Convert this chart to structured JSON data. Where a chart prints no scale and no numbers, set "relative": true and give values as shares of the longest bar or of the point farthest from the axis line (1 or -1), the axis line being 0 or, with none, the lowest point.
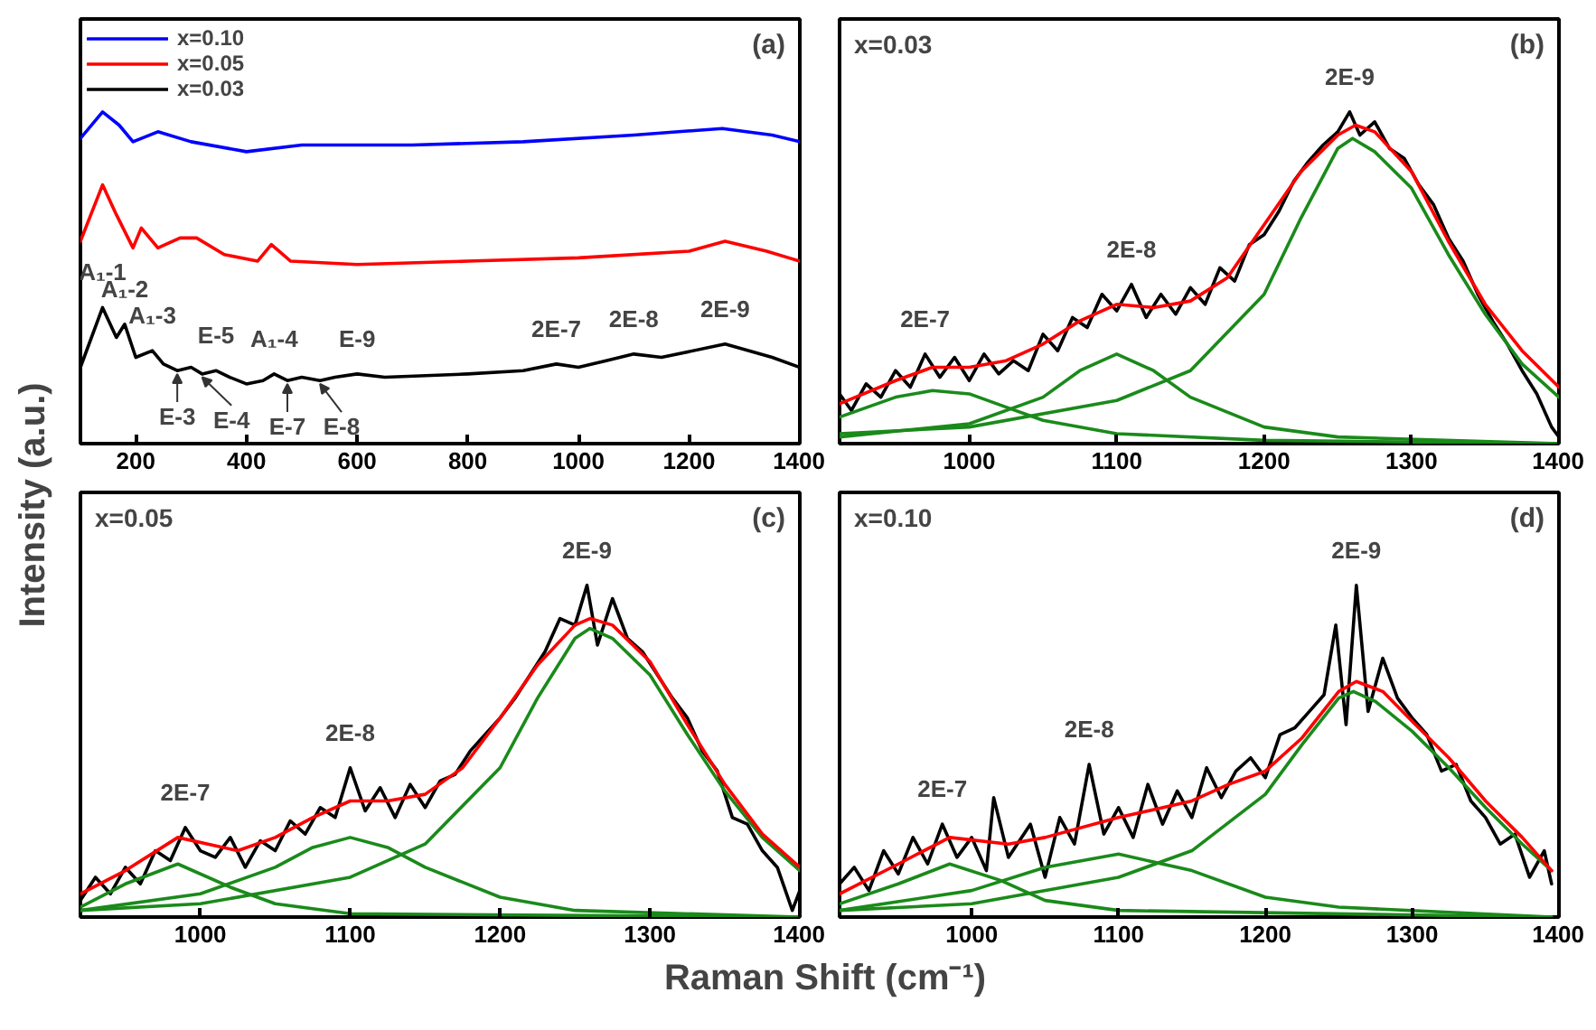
{
  "chart_data": [
    {
      "type": "line",
      "title": "(a)",
      "ylabel": "Intensity (a.u.)",
      "relative": true,
      "tick_labels": "x",
      "legend": "top left",
      "xlim": [
        100,
        1400
      ],
      "xticks": [
        200,
        400,
        600,
        800,
        1000,
        1200,
        1400
      ],
      "series": [
        {
          "name": "x=0.10",
          "color": "#0000ff",
          "x": [
            100,
            140,
            170,
            195,
            240,
            300,
            400,
            500,
            700,
            900,
            1100,
            1260,
            1350,
            1400
          ],
          "values": [
            0.92,
            1.0,
            0.96,
            0.91,
            0.94,
            0.91,
            0.88,
            0.9,
            0.9,
            0.91,
            0.93,
            0.95,
            0.93,
            0.91
          ]
        },
        {
          "name": "x=0.05",
          "color": "#ff0000",
          "x": [
            100,
            140,
            165,
            195,
            210,
            240,
            280,
            310,
            360,
            420,
            445,
            480,
            600,
            800,
            1000,
            1200,
            1265,
            1340,
            1400
          ],
          "values": [
            0.61,
            0.78,
            0.69,
            0.59,
            0.65,
            0.59,
            0.62,
            0.62,
            0.57,
            0.55,
            0.6,
            0.55,
            0.54,
            0.55,
            0.56,
            0.58,
            0.61,
            0.58,
            0.55
          ]
        },
        {
          "name": "x=0.03",
          "color": "#000000",
          "x": [
            100,
            140,
            165,
            180,
            200,
            230,
            250,
            275,
            300,
            320,
            345,
            370,
            400,
            430,
            450,
            474,
            500,
            533,
            560,
            600,
            650,
            800,
            900,
            960,
            1000,
            1050,
            1100,
            1150,
            1265,
            1350,
            1400
          ],
          "values": [
            0.23,
            0.41,
            0.32,
            0.36,
            0.26,
            0.28,
            0.24,
            0.22,
            0.23,
            0.21,
            0.22,
            0.2,
            0.18,
            0.19,
            0.21,
            0.19,
            0.2,
            0.19,
            0.2,
            0.21,
            0.2,
            0.21,
            0.22,
            0.24,
            0.23,
            0.25,
            0.27,
            0.26,
            0.3,
            0.26,
            0.23
          ]
        }
      ],
      "annotations": [
        {
          "text": "A₁-1",
          "x": 140,
          "y": 0.41
        },
        {
          "text": "A₁-2",
          "x": 180,
          "y": 0.36
        },
        {
          "text": "A₁-3",
          "x": 230,
          "y": 0.28
        },
        {
          "text": "E-5",
          "x": 345,
          "y": 0.22
        },
        {
          "text": "A₁-4",
          "x": 450,
          "y": 0.21
        },
        {
          "text": "E-9",
          "x": 600,
          "y": 0.21
        },
        {
          "text": "2E-7",
          "x": 960,
          "y": 0.24
        },
        {
          "text": "2E-8",
          "x": 1100,
          "y": 0.27
        },
        {
          "text": "2E-9",
          "x": 1265,
          "y": 0.3
        },
        {
          "text": "E-3",
          "x": 275,
          "y": 0.22
        },
        {
          "text": "E-4",
          "x": 320,
          "y": 0.21
        },
        {
          "text": "E-7",
          "x": 474,
          "y": 0.19
        },
        {
          "text": "E-8",
          "x": 533,
          "y": 0.19
        }
      ]
    },
    {
      "type": "line",
      "title": "(b)",
      "subtitle": "x=0.03",
      "relative": true,
      "tick_labels": "x",
      "xlim": [
        912,
        1400
      ],
      "xticks": [
        1000,
        1100,
        1200,
        1300,
        1400
      ],
      "series": [
        {
          "color": "#000000",
          "x": [
            912,
            920,
            930,
            940,
            950,
            960,
            970,
            980,
            990,
            1000,
            1010,
            1020,
            1030,
            1040,
            1050,
            1060,
            1070,
            1080,
            1090,
            1100,
            1110,
            1120,
            1130,
            1140,
            1150,
            1160,
            1170,
            1180,
            1190,
            1200,
            1210,
            1220,
            1230,
            1240,
            1250,
            1258,
            1265,
            1275,
            1285,
            1295,
            1305,
            1315,
            1325,
            1335,
            1345,
            1355,
            1365,
            1375,
            1385,
            1395,
            1400
          ],
          "values": [
            0.15,
            0.1,
            0.18,
            0.14,
            0.22,
            0.17,
            0.27,
            0.2,
            0.26,
            0.19,
            0.27,
            0.21,
            0.25,
            0.22,
            0.33,
            0.28,
            0.38,
            0.35,
            0.45,
            0.4,
            0.48,
            0.38,
            0.45,
            0.39,
            0.47,
            0.42,
            0.53,
            0.49,
            0.6,
            0.63,
            0.7,
            0.79,
            0.85,
            0.9,
            0.94,
            1.0,
            0.93,
            0.97,
            0.89,
            0.86,
            0.78,
            0.72,
            0.62,
            0.55,
            0.45,
            0.37,
            0.3,
            0.22,
            0.15,
            0.05,
            0.02
          ]
        },
        {
          "color": "#1a8a1a",
          "x": [
            912,
            950,
            975,
            1000,
            1025,
            1050,
            1100,
            1200,
            1400
          ],
          "values": [
            0.08,
            0.14,
            0.16,
            0.15,
            0.11,
            0.07,
            0.03,
            0.01,
            0
          ]
        },
        {
          "color": "#1a8a1a",
          "x": [
            912,
            1000,
            1050,
            1075,
            1100,
            1125,
            1150,
            1200,
            1250,
            1400
          ],
          "values": [
            0.02,
            0.06,
            0.14,
            0.22,
            0.27,
            0.22,
            0.14,
            0.05,
            0.02,
            0
          ]
        },
        {
          "color": "#1a8a1a",
          "x": [
            912,
            1000,
            1100,
            1150,
            1200,
            1225,
            1250,
            1260,
            1275,
            1300,
            1325,
            1350,
            1375,
            1400
          ],
          "values": [
            0.03,
            0.05,
            0.13,
            0.22,
            0.45,
            0.68,
            0.89,
            0.92,
            0.88,
            0.77,
            0.57,
            0.39,
            0.24,
            0.14
          ]
        },
        {
          "color": "#ff0000",
          "x": [
            912,
            950,
            975,
            1000,
            1025,
            1050,
            1075,
            1100,
            1125,
            1150,
            1175,
            1200,
            1225,
            1250,
            1262,
            1275,
            1300,
            1325,
            1350,
            1375,
            1400
          ],
          "values": [
            0.12,
            0.19,
            0.23,
            0.23,
            0.25,
            0.3,
            0.37,
            0.42,
            0.41,
            0.43,
            0.5,
            0.66,
            0.82,
            0.93,
            0.96,
            0.94,
            0.82,
            0.61,
            0.42,
            0.28,
            0.17
          ]
        }
      ],
      "annotations": [
        {
          "text": "2E-7",
          "x": 970,
          "y": 0.27
        },
        {
          "text": "2E-8",
          "x": 1110,
          "y": 0.48
        },
        {
          "text": "2E-9",
          "x": 1258,
          "y": 1.0
        }
      ]
    },
    {
      "type": "line",
      "title": "(c)",
      "subtitle": "x=0.05",
      "xlabel": "Raman Shift (cm⁻¹)",
      "relative": true,
      "tick_labels": "x",
      "xlim": [
        920,
        1400
      ],
      "xticks": [
        1000,
        1100,
        1200,
        1300,
        1400
      ],
      "series": [
        {
          "color": "#000000",
          "x": [
            920,
            930,
            940,
            950,
            960,
            970,
            980,
            990,
            1000,
            1010,
            1020,
            1030,
            1040,
            1050,
            1060,
            1070,
            1080,
            1090,
            1100,
            1110,
            1120,
            1130,
            1140,
            1150,
            1160,
            1170,
            1180,
            1190,
            1200,
            1210,
            1220,
            1230,
            1240,
            1250,
            1258,
            1265,
            1275,
            1285,
            1295,
            1305,
            1315,
            1325,
            1335,
            1345,
            1355,
            1365,
            1375,
            1385,
            1395,
            1400
          ],
          "values": [
            0.05,
            0.12,
            0.07,
            0.15,
            0.1,
            0.2,
            0.17,
            0.27,
            0.2,
            0.18,
            0.24,
            0.15,
            0.23,
            0.2,
            0.29,
            0.25,
            0.33,
            0.3,
            0.45,
            0.32,
            0.39,
            0.3,
            0.4,
            0.33,
            0.41,
            0.43,
            0.5,
            0.55,
            0.6,
            0.66,
            0.73,
            0.8,
            0.9,
            0.88,
            1.0,
            0.82,
            0.96,
            0.84,
            0.8,
            0.73,
            0.66,
            0.6,
            0.5,
            0.44,
            0.3,
            0.28,
            0.2,
            0.15,
            0.02,
            0.08
          ]
        },
        {
          "color": "#1a8a1a",
          "x": [
            920,
            950,
            985,
            1020,
            1050,
            1100,
            1400
          ],
          "values": [
            0.03,
            0.1,
            0.16,
            0.09,
            0.04,
            0.01,
            0
          ]
        },
        {
          "color": "#1a8a1a",
          "x": [
            920,
            1000,
            1050,
            1075,
            1100,
            1125,
            1150,
            1200,
            1250,
            1400
          ],
          "values": [
            0.02,
            0.07,
            0.15,
            0.21,
            0.24,
            0.21,
            0.15,
            0.06,
            0.02,
            0
          ]
        },
        {
          "color": "#1a8a1a",
          "x": [
            920,
            1000,
            1100,
            1150,
            1200,
            1225,
            1250,
            1260,
            1275,
            1300,
            1325,
            1350,
            1375,
            1400
          ],
          "values": [
            0.02,
            0.04,
            0.12,
            0.22,
            0.45,
            0.66,
            0.84,
            0.87,
            0.84,
            0.73,
            0.55,
            0.38,
            0.24,
            0.14
          ]
        },
        {
          "color": "#ff0000",
          "x": [
            920,
            950,
            985,
            1025,
            1050,
            1075,
            1100,
            1125,
            1150,
            1175,
            1200,
            1225,
            1250,
            1260,
            1275,
            1300,
            1325,
            1350,
            1375,
            1400
          ],
          "values": [
            0.07,
            0.14,
            0.24,
            0.2,
            0.24,
            0.3,
            0.35,
            0.35,
            0.37,
            0.45,
            0.6,
            0.76,
            0.88,
            0.9,
            0.88,
            0.77,
            0.58,
            0.4,
            0.25,
            0.15
          ]
        }
      ],
      "annotations": [
        {
          "text": "2E-7",
          "x": 990,
          "y": 0.27
        },
        {
          "text": "2E-8",
          "x": 1100,
          "y": 0.45
        },
        {
          "text": "2E-9",
          "x": 1258,
          "y": 1.0
        }
      ]
    },
    {
      "type": "line",
      "title": "(d)",
      "subtitle": "x=0.10",
      "relative": true,
      "tick_labels": "x",
      "xlim": [
        910,
        1400
      ],
      "xticks": [
        1000,
        1100,
        1200,
        1300,
        1400
      ],
      "series": [
        {
          "color": "#000000",
          "x": [
            910,
            920,
            930,
            940,
            950,
            960,
            970,
            980,
            990,
            1000,
            1010,
            1015,
            1025,
            1040,
            1050,
            1060,
            1070,
            1080,
            1090,
            1100,
            1110,
            1120,
            1130,
            1140,
            1150,
            1160,
            1170,
            1180,
            1190,
            1200,
            1210,
            1220,
            1230,
            1240,
            1248,
            1255,
            1262,
            1270,
            1280,
            1290,
            1300,
            1310,
            1320,
            1330,
            1340,
            1350,
            1360,
            1370,
            1380,
            1390,
            1395
          ],
          "values": [
            0.1,
            0.15,
            0.08,
            0.2,
            0.13,
            0.24,
            0.16,
            0.28,
            0.18,
            0.24,
            0.14,
            0.36,
            0.18,
            0.28,
            0.12,
            0.3,
            0.22,
            0.46,
            0.25,
            0.33,
            0.24,
            0.4,
            0.28,
            0.38,
            0.3,
            0.45,
            0.36,
            0.44,
            0.48,
            0.42,
            0.55,
            0.57,
            0.62,
            0.67,
            0.88,
            0.58,
            1.0,
            0.62,
            0.78,
            0.66,
            0.6,
            0.55,
            0.44,
            0.46,
            0.35,
            0.3,
            0.22,
            0.25,
            0.12,
            0.2,
            0.1
          ]
        },
        {
          "color": "#1a8a1a",
          "x": [
            910,
            950,
            985,
            1020,
            1050,
            1100,
            1395
          ],
          "values": [
            0.04,
            0.1,
            0.16,
            0.11,
            0.05,
            0.02,
            0
          ]
        },
        {
          "color": "#1a8a1a",
          "x": [
            910,
            1000,
            1050,
            1100,
            1150,
            1200,
            1250,
            1395
          ],
          "values": [
            0.02,
            0.08,
            0.15,
            0.19,
            0.14,
            0.06,
            0.03,
            0
          ]
        },
        {
          "color": "#1a8a1a",
          "x": [
            910,
            1000,
            1100,
            1150,
            1200,
            1225,
            1250,
            1260,
            1275,
            1300,
            1325,
            1350,
            1375,
            1395
          ],
          "values": [
            0.02,
            0.04,
            0.12,
            0.2,
            0.37,
            0.52,
            0.66,
            0.68,
            0.65,
            0.56,
            0.45,
            0.33,
            0.22,
            0.14
          ]
        },
        {
          "color": "#ff0000",
          "x": [
            910,
            950,
            985,
            1025,
            1050,
            1100,
            1150,
            1175,
            1200,
            1225,
            1250,
            1262,
            1280,
            1300,
            1325,
            1350,
            1375,
            1395
          ],
          "values": [
            0.07,
            0.16,
            0.24,
            0.22,
            0.24,
            0.3,
            0.35,
            0.4,
            0.44,
            0.54,
            0.68,
            0.71,
            0.68,
            0.59,
            0.48,
            0.35,
            0.24,
            0.14
          ]
        }
      ],
      "annotations": [
        {
          "text": "2E-7",
          "x": 980,
          "y": 0.28
        },
        {
          "text": "2E-8",
          "x": 1080,
          "y": 0.46
        },
        {
          "text": "2E-9",
          "x": 1262,
          "y": 1.0
        }
      ]
    }
  ]
}
